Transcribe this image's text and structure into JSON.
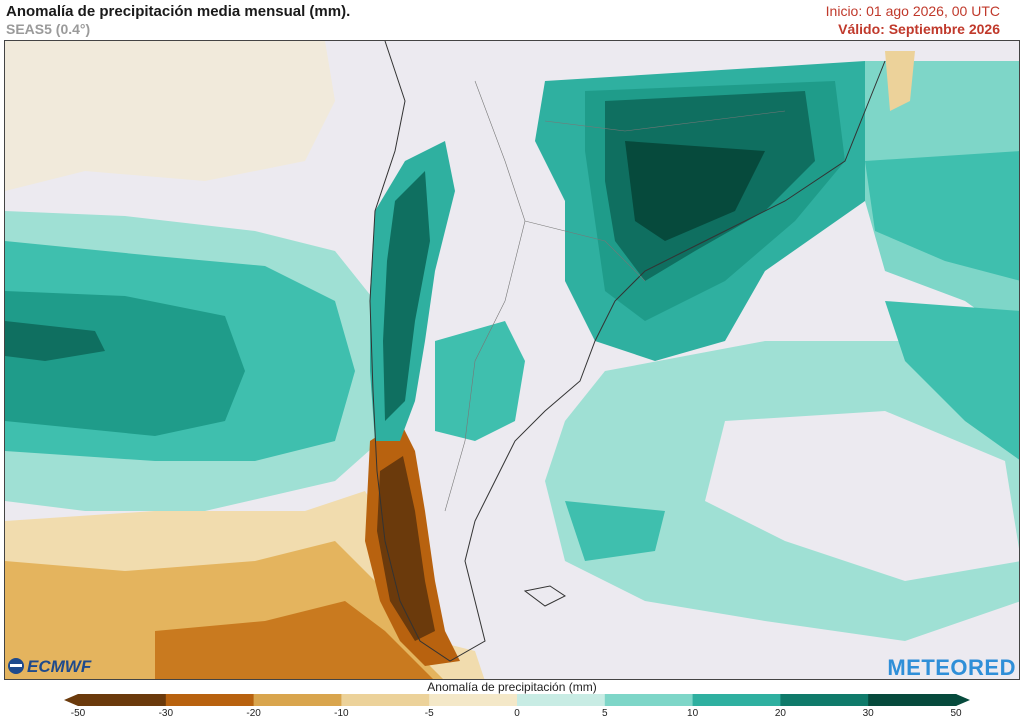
{
  "header": {
    "title": "Anomalía de precipitación media mensual (mm).",
    "model": "SEAS5 (0.4°)",
    "init": "Inicio: 01 ago 2026, 00 UTC",
    "valid": "Válido: Septiembre 2026"
  },
  "legend": {
    "title": "Anomalía de precipitación (mm)",
    "ticks": [
      "-50",
      "-30",
      "-20",
      "-10",
      "-5",
      "0",
      "5",
      "10",
      "20",
      "30",
      "50"
    ],
    "colors": [
      "#6b3a0c",
      "#b8620f",
      "#d9a54d",
      "#ecd29a",
      "#f4e8c8",
      "#eceaf0",
      "#c8ece4",
      "#7ed6c8",
      "#2fb0a0",
      "#0f7a6a",
      "#064a3c"
    ]
  },
  "logos": {
    "left": "ECMWF",
    "right": "METEORED"
  }
}
